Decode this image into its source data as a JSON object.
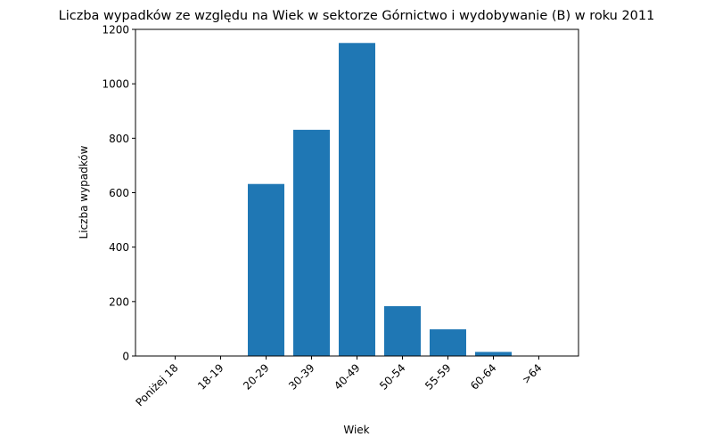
{
  "chart_data": {
    "type": "bar",
    "title": "Liczba wypadków ze względu na Wiek w sektorze Górnictwo i wydobywanie (B)   w roku 2011",
    "xlabel": "Wiek",
    "ylabel": "Liczba wypadków",
    "categories": [
      "Poniżej 18",
      "18-19",
      "20-29",
      "30-39",
      "40-49",
      "50-54",
      "55-59",
      "60-64",
      ">64"
    ],
    "values": [
      0,
      0,
      632,
      831,
      1150,
      183,
      98,
      15,
      0
    ],
    "ylim": [
      0,
      1200
    ],
    "yticks": [
      "0",
      "200",
      "400",
      "600",
      "800",
      "1000",
      "1200"
    ],
    "grid": false,
    "bar_color": "#1f77b4"
  }
}
